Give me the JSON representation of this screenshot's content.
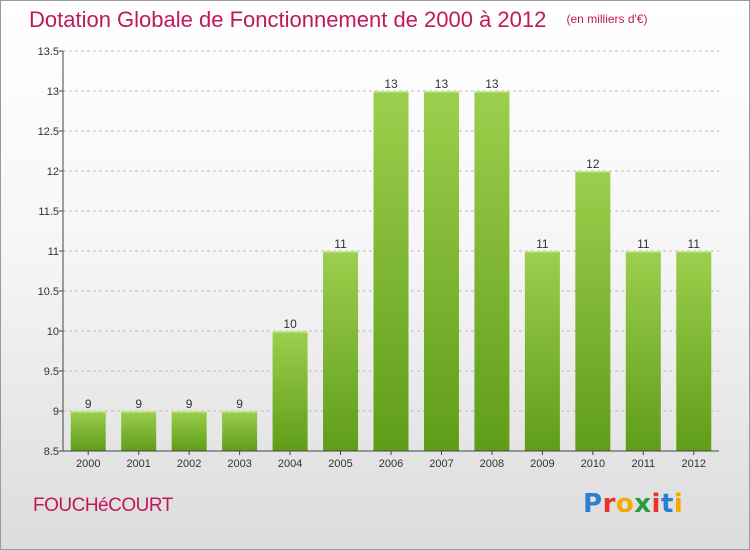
{
  "title": "Dotation Globale de Fonctionnement de 2000 à 2012",
  "unit": "(en milliers d'€)",
  "commune": "FOUCHéCOURT",
  "brand": {
    "text": "Proxiti",
    "letters": [
      "P",
      "r",
      "o",
      "x",
      "i",
      "t",
      "i"
    ],
    "letter_colors": [
      "#2a7fd0",
      "#e8322a",
      "#f2a900",
      "#2a9a3a",
      "#e8322a",
      "#2a7fd0",
      "#f2a900"
    ]
  },
  "colors": {
    "title": "#c0185a",
    "bar_light": "#9ccf4d",
    "bar_dark": "#5f9d18",
    "axis": "#444444",
    "grid": "#bcbcbc"
  },
  "chart_data": {
    "type": "bar",
    "title": "Dotation Globale de Fonctionnement de 2000 à 2012",
    "subtitle": "(en milliers d'€)",
    "categories": [
      "2000",
      "2001",
      "2002",
      "2003",
      "2004",
      "2005",
      "2006",
      "2007",
      "2008",
      "2009",
      "2010",
      "2011",
      "2012"
    ],
    "values": [
      9,
      9,
      9,
      9,
      10,
      11,
      13,
      13,
      13,
      11,
      12,
      11,
      11
    ],
    "data_labels": [
      "9",
      "9",
      "9",
      "9",
      "10",
      "11",
      "13",
      "13",
      "13",
      "11",
      "12",
      "11",
      "11"
    ],
    "xlabel": "",
    "ylabel": "",
    "ylim": [
      8.5,
      13.5
    ],
    "yticks": [
      8.5,
      9,
      9.5,
      10,
      10.5,
      11,
      11.5,
      12,
      12.5,
      13,
      13.5
    ],
    "ytick_labels": [
      "8.5",
      "9",
      "9.5",
      "10",
      "10.5",
      "11",
      "11.5",
      "12",
      "12.5",
      "13",
      "13.5"
    ],
    "grid": true
  }
}
